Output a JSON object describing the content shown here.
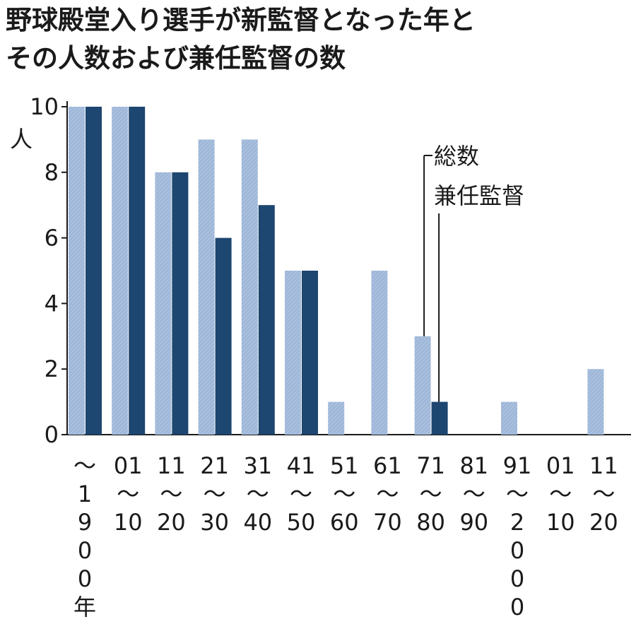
{
  "title_lines": [
    "野球殿堂入り選手が新監督となった年と",
    "その人数および兼任監督の数"
  ],
  "colors": {
    "total": "#9fb7d8",
    "concurrent": "#1d4670",
    "axis": "#1a1a1a"
  },
  "chart_data": {
    "type": "bar",
    "title": "野球殿堂入り選手が新監督となった年とその人数および兼任監督の数",
    "ylabel": "人",
    "ylim": [
      0,
      10
    ],
    "yticks": [
      "0",
      "2",
      "4",
      "6",
      "8",
      "10"
    ],
    "categories": [
      "～1900年",
      "01～10",
      "11～20",
      "21～30",
      "31～40",
      "41～50",
      "51～60",
      "61～70",
      "71～80",
      "81～90",
      "91～2000",
      "01～10",
      "11～20"
    ],
    "category_labels": [
      [
        "～",
        "1",
        "9",
        "0",
        "0",
        "年"
      ],
      [
        "01",
        "～",
        "10"
      ],
      [
        "11",
        "～",
        "20"
      ],
      [
        "21",
        "～",
        "30"
      ],
      [
        "31",
        "～",
        "40"
      ],
      [
        "41",
        "～",
        "50"
      ],
      [
        "51",
        "～",
        "60"
      ],
      [
        "61",
        "～",
        "70"
      ],
      [
        "71",
        "～",
        "80"
      ],
      [
        "81",
        "～",
        "90"
      ],
      [
        "91",
        "～",
        "2",
        "0",
        "0",
        "0"
      ],
      [
        "01",
        "～",
        "10"
      ],
      [
        "11",
        "～",
        "20"
      ]
    ],
    "series": [
      {
        "name": "総数",
        "values": [
          10,
          10,
          8,
          9,
          9,
          5,
          1,
          5,
          3,
          0,
          1,
          0,
          2
        ]
      },
      {
        "name": "兼任監督",
        "values": [
          10,
          10,
          8,
          6,
          7,
          5,
          0,
          0,
          1,
          0,
          0,
          0,
          0
        ]
      }
    ],
    "legend_placement": "annotation-callout",
    "grid": false
  }
}
